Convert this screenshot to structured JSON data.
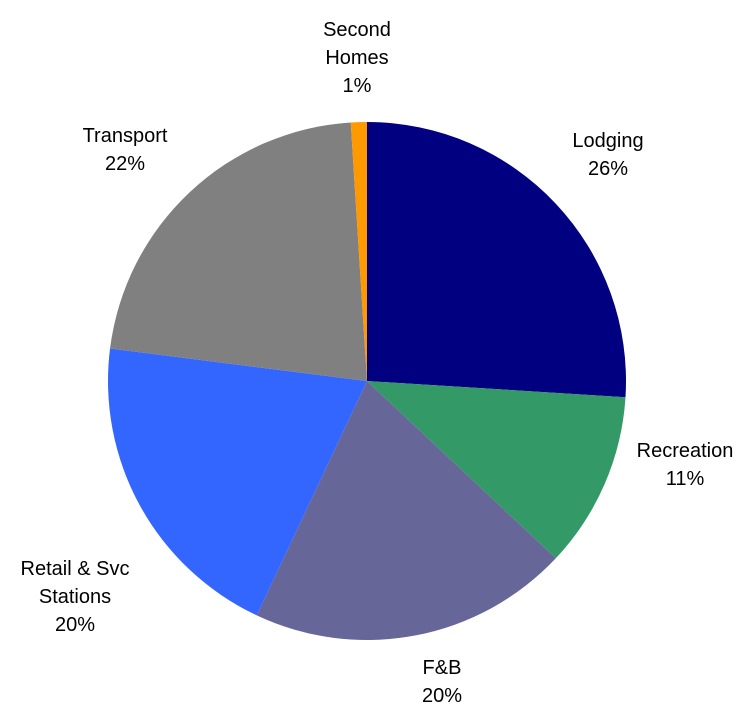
{
  "chart_data": {
    "type": "pie",
    "categories": [
      "Lodging",
      "Recreation",
      "F&B",
      "Retail & Svc\nStations",
      "Transport",
      "Second\nHomes"
    ],
    "values": [
      26,
      11,
      20,
      20,
      22,
      1
    ],
    "value_labels": [
      "26%",
      "11%",
      "20%",
      "20%",
      "22%",
      "1%"
    ],
    "colors": [
      "#000080",
      "#339966",
      "#666699",
      "#3366ff",
      "#808080",
      "#ff9900"
    ]
  }
}
